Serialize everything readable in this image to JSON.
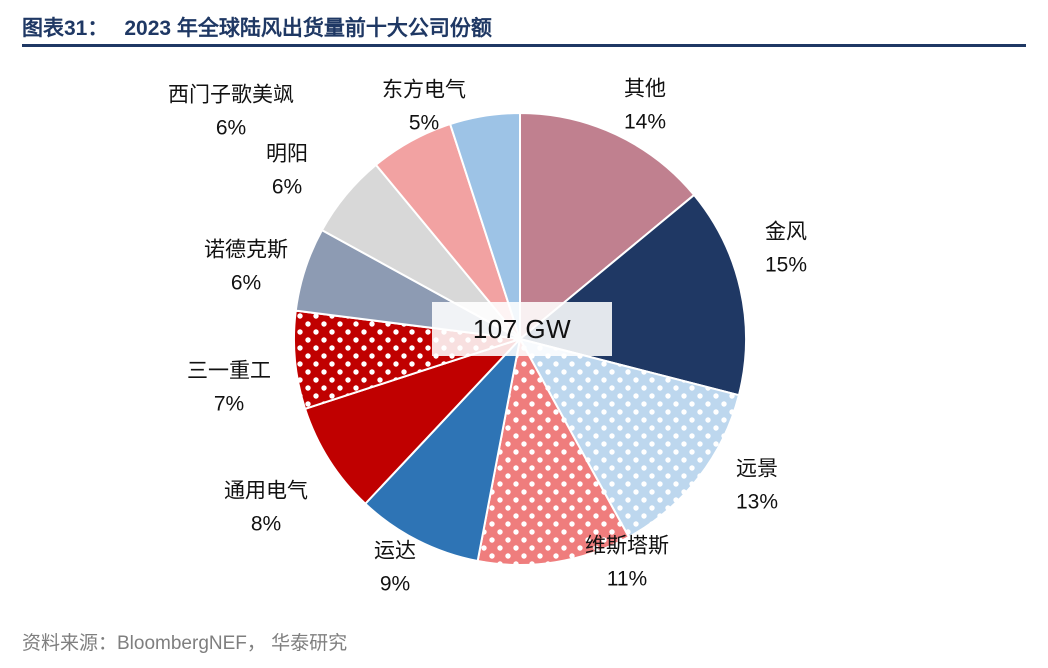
{
  "header": {
    "figure_label": "图表31：",
    "title": "2023 年全球陆风出货量前十大公司份额"
  },
  "colors": {
    "header_navy": "#1f3864",
    "source_gray": "#7f7f7f",
    "slice_border": "#ffffff"
  },
  "chart_data": {
    "type": "pie",
    "title": "2023 年全球陆风出货量前十大公司份额",
    "center_label": "107 GW",
    "unit": "%",
    "start_angle_deg": 0,
    "direction": "clockwise",
    "legend_position": "outside-labels",
    "slices": [
      {
        "label": "其他",
        "value": 14,
        "color": "#c0808f",
        "pattern": "solid"
      },
      {
        "label": "金风",
        "value": 15,
        "color": "#1f3864",
        "pattern": "solid"
      },
      {
        "label": "远景",
        "value": 13,
        "color": "#bdd7ee",
        "pattern": "dots"
      },
      {
        "label": "维斯塔斯",
        "value": 11,
        "color": "#ef7d7d",
        "pattern": "dots"
      },
      {
        "label": "运达",
        "value": 9,
        "color": "#2e74b5",
        "pattern": "solid"
      },
      {
        "label": "通用电气",
        "value": 8,
        "color": "#c00000",
        "pattern": "solid"
      },
      {
        "label": "三一重工",
        "value": 7,
        "color": "#c00000",
        "pattern": "dots"
      },
      {
        "label": "诺德克斯",
        "value": 6,
        "color": "#8d9bb3",
        "pattern": "solid"
      },
      {
        "label": "明阳",
        "value": 6,
        "color": "#d8d8d8",
        "pattern": "solid"
      },
      {
        "label": "西门子歌美飒",
        "value": 6,
        "color": "#f2a2a2",
        "pattern": "solid"
      },
      {
        "label": "东方电气",
        "value": 5,
        "color": "#9dc3e6",
        "pattern": "solid"
      }
    ]
  },
  "footer": {
    "source": "资料来源：BloombergNEF， 华泰研究"
  }
}
